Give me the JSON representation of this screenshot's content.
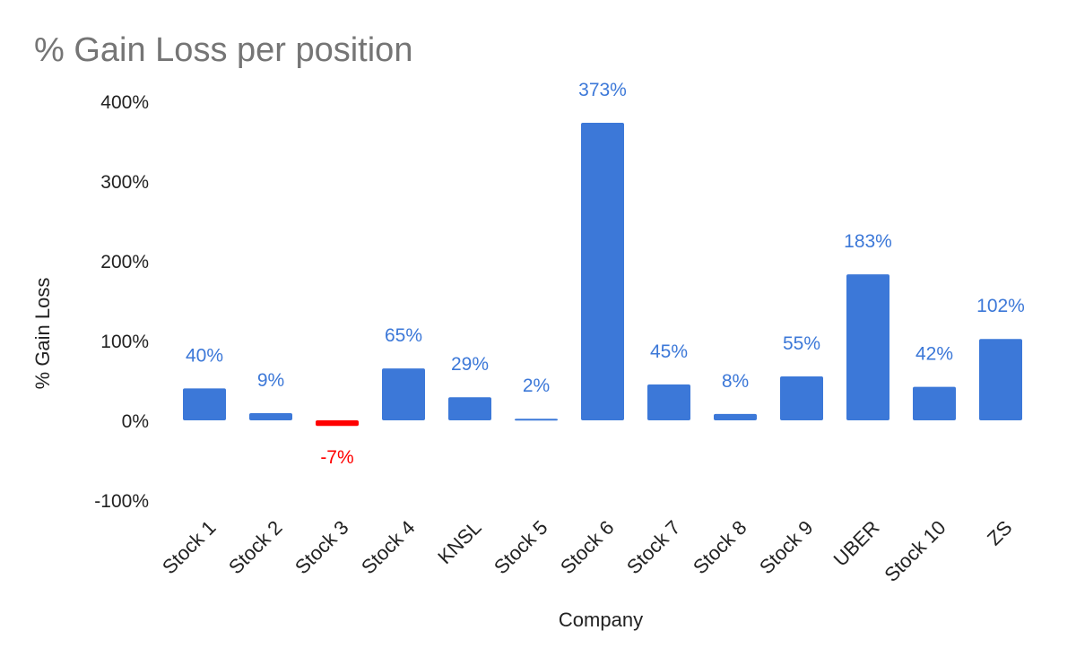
{
  "chart_data": {
    "type": "bar",
    "title": "% Gain Loss per position",
    "xlabel": "Company",
    "ylabel": "% Gain Loss",
    "categories": [
      "Stock 1",
      "Stock 2",
      "Stock 3",
      "Stock 4",
      "KNSL",
      "Stock 5",
      "Stock 6",
      "Stock 7",
      "Stock 8",
      "Stock 9",
      "UBER",
      "Stock 10",
      "ZS"
    ],
    "values": [
      40,
      9,
      -7,
      65,
      29,
      2,
      373,
      45,
      8,
      55,
      183,
      42,
      102
    ],
    "data_labels": [
      "40%",
      "9%",
      "-7%",
      "65%",
      "29%",
      "2%",
      "373%",
      "45%",
      "8%",
      "55%",
      "183%",
      "42%",
      "102%"
    ],
    "y_ticks": [
      400,
      300,
      200,
      100,
      0,
      -100
    ],
    "y_tick_labels": [
      "400%",
      "300%",
      "200%",
      "100%",
      "0%",
      "-100%"
    ],
    "ylim": [
      -100,
      400
    ],
    "grid": false,
    "legend": "none",
    "colors": {
      "positive": "#3c78d8",
      "negative": "#ff0000",
      "title": "#757575",
      "text": "#222222"
    }
  }
}
